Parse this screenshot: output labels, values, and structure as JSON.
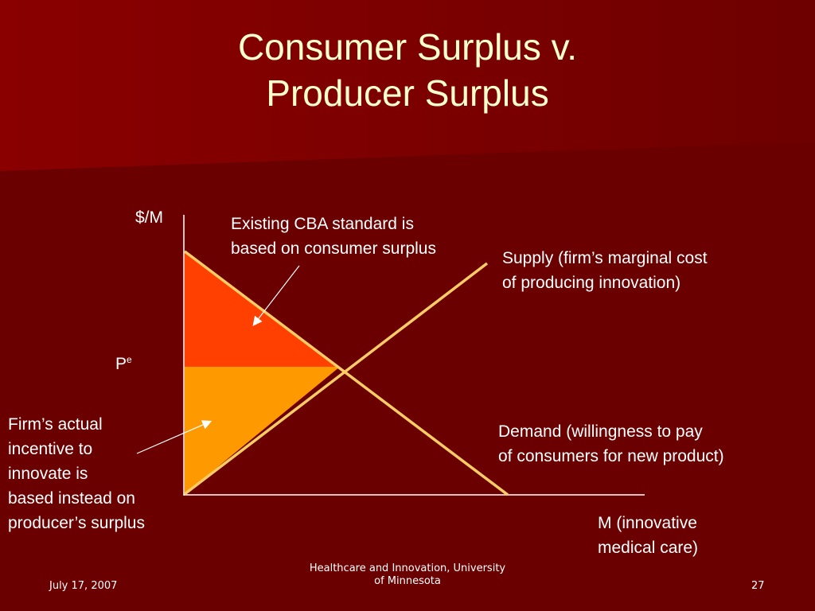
{
  "slide": {
    "title_line1": "Consumer Surplus v.",
    "title_line2": "Producer Surplus"
  },
  "diagram": {
    "y_axis_label": "$/M",
    "price_label": "P",
    "price_label_superscript": "e",
    "consumer_surplus_note_line1": "Existing CBA standard is",
    "consumer_surplus_note_line2": "based on consumer surplus",
    "supply_label_line1": "Supply (firm’s marginal cost",
    "supply_label_line2": "of producing innovation)",
    "demand_label_line1": "Demand (willingness to pay",
    "demand_label_line2": "of consumers for new product)",
    "producer_surplus_note": [
      "Firm’s actual",
      "incentive to",
      "innovate is",
      "based instead on",
      "producer’s surplus"
    ],
    "x_axis_label_line1": "M (innovative",
    "x_axis_label_line2": "medical care)",
    "colors": {
      "consumer_surplus": "#ff4000",
      "producer_surplus": "#ff9900",
      "curves": "#ffcc66",
      "axes": "#ffffff",
      "background": "#6b0000"
    }
  },
  "footer": {
    "date": "July 17, 2007",
    "center_line1": "Healthcare and Innovation, University",
    "center_line2": "of Minnesota",
    "page_number": "27"
  }
}
